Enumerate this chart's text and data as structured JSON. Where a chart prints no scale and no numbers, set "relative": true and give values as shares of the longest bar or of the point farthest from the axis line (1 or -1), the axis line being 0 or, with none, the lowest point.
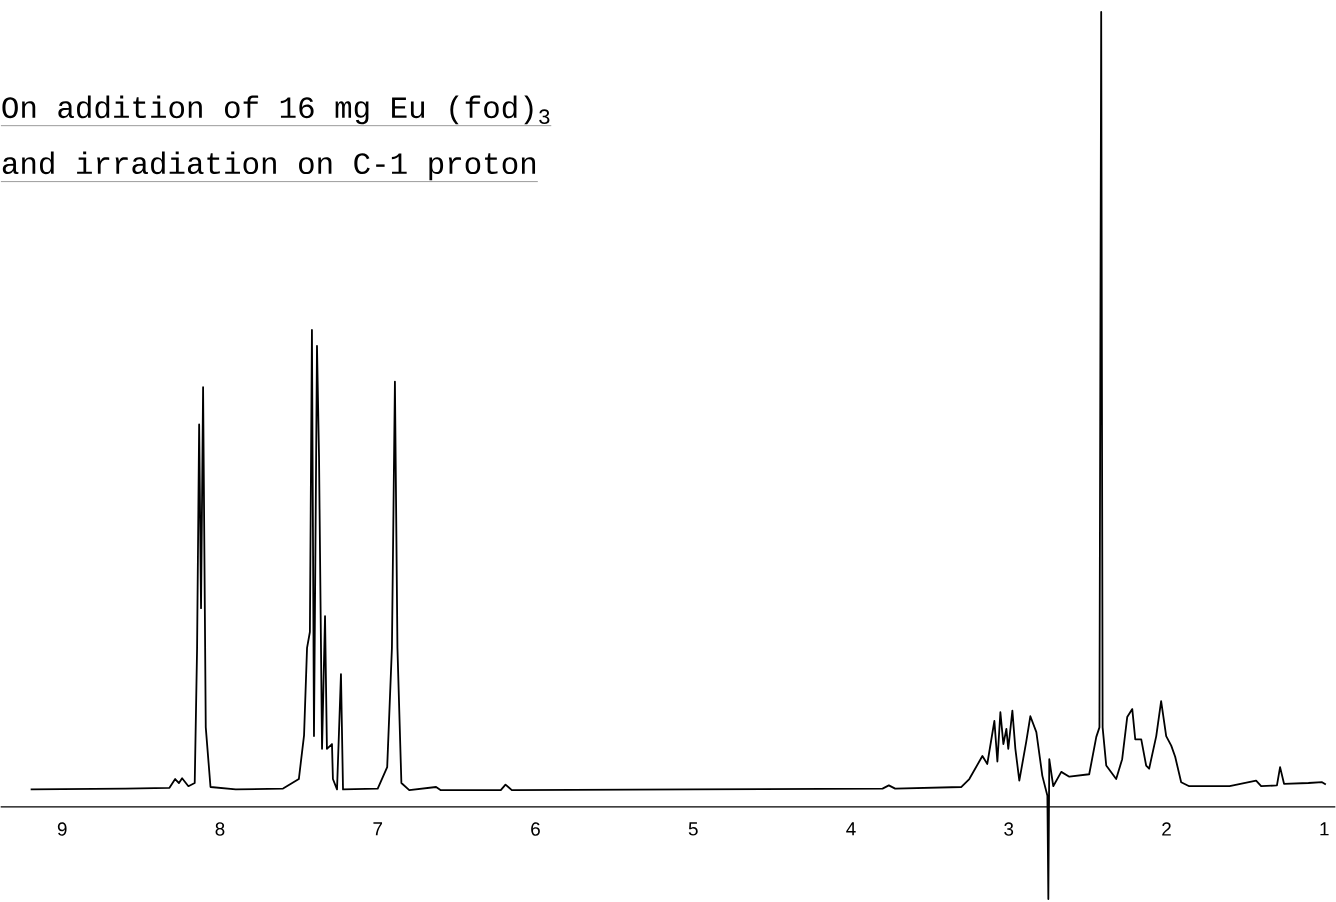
{
  "chart_data": {
    "type": "line",
    "relative": true,
    "title": "On addition of 16 mg Eu (fod)$_{3}$",
    "subtitle": "and irradiation on C-1 proton",
    "xlim": [
      9.39,
      0.93
    ],
    "xticks": [
      9,
      8,
      7,
      6,
      5,
      4,
      3,
      2,
      1
    ],
    "x": [
      9.2,
      8.6,
      8.32,
      8.284,
      8.26,
      8.24,
      8.2,
      8.16,
      8.145,
      8.132,
      8.12,
      8.107,
      8.09,
      8.06,
      7.9,
      7.6,
      7.5,
      7.467,
      7.448,
      7.43,
      7.417,
      7.404,
      7.385,
      7.372,
      7.353,
      7.334,
      7.322,
      7.29,
      7.284,
      7.258,
      7.233,
      7.22,
      7.0,
      6.94,
      6.91,
      6.891,
      6.875,
      6.85,
      6.8,
      6.63,
      6.6,
      6.22,
      6.19,
      6.15,
      5.0,
      3.8,
      3.76,
      3.72,
      3.3,
      3.25,
      3.167,
      3.136,
      3.091,
      3.072,
      3.053,
      3.034,
      3.015,
      3.003,
      2.977,
      2.958,
      2.933,
      2.889,
      2.863,
      2.825,
      2.787,
      2.755,
      2.749,
      2.743,
      2.718,
      2.667,
      2.616,
      2.49,
      2.445,
      2.425,
      2.414,
      2.405,
      2.382,
      2.319,
      2.281,
      2.249,
      2.217,
      2.198,
      2.16,
      2.129,
      2.11,
      2.065,
      2.034,
      2.002,
      1.97,
      1.945,
      1.907,
      1.856,
      1.6,
      1.432,
      1.4,
      1.3,
      1.28,
      1.255,
      1.1,
      1.014,
      0.99
    ],
    "series": [
      {
        "color": "#000000",
        "values": [
          0.022,
          0.023,
          0.024,
          0.035,
          0.03,
          0.036,
          0.026,
          0.03,
          0.2,
          0.481,
          0.25,
          0.528,
          0.1,
          0.025,
          0.022,
          0.023,
          0.035,
          0.09,
          0.2,
          0.22,
          0.6,
          0.089,
          0.58,
          0.44,
          0.073,
          0.24,
          0.073,
          0.079,
          0.035,
          0.022,
          0.167,
          0.022,
          0.023,
          0.05,
          0.2,
          0.535,
          0.2,
          0.03,
          0.021,
          0.025,
          0.021,
          0.021,
          0.028,
          0.021,
          0.022,
          0.023,
          0.027,
          0.023,
          0.025,
          0.035,
          0.064,
          0.054,
          0.108,
          0.057,
          0.119,
          0.079,
          0.098,
          0.073,
          0.121,
          0.073,
          0.033,
          0.082,
          0.114,
          0.094,
          0.039,
          0.014,
          -0.116,
          0.06,
          0.026,
          0.044,
          0.038,
          0.041,
          0.088,
          0.1,
          1.0,
          0.1,
          0.052,
          0.035,
          0.06,
          0.113,
          0.123,
          0.085,
          0.085,
          0.052,
          0.048,
          0.089,
          0.133,
          0.089,
          0.077,
          0.063,
          0.031,
          0.026,
          0.026,
          0.033,
          0.026,
          0.027,
          0.05,
          0.029,
          0.03,
          0.031,
          0.028
        ]
      }
    ]
  }
}
